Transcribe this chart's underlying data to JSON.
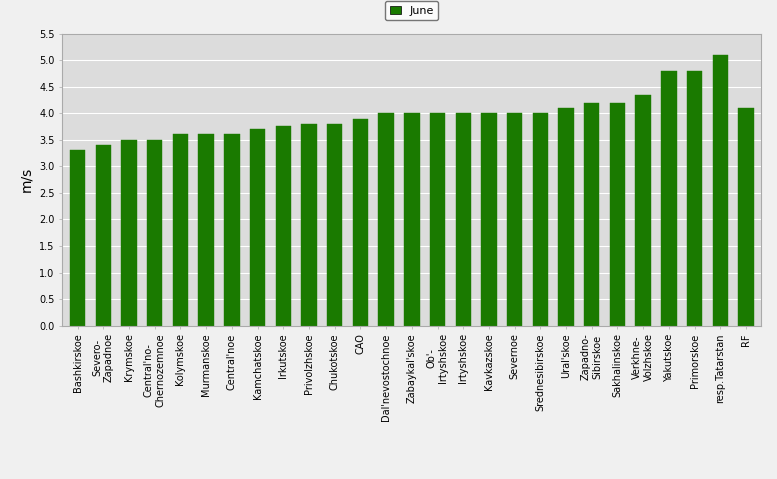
{
  "categories": [
    "Bashkirskoe",
    "Severo-\nZapadnoe",
    "Krymskoe",
    "Central'no-\nChernozemnoe",
    "Kolymskoe",
    "Murmanskoe",
    "Central'noe",
    "Kamchatskoe",
    "Irkutskoe",
    "Privolzhskoe",
    "Chukotskoe",
    "CAO",
    "Dal'nevostochnoe",
    "Zabaykal'skoe",
    "Ob'-\nIrtyshskoe",
    "Irtyshskoe",
    "Kavkazskoe",
    "Severnoe",
    "Srednesibirskoe",
    "Ural'skoe",
    "Zapadno-\nSibirskoe",
    "Sakhalinskoe",
    "Verkhne-\nVolzhskoe",
    "Yakutskoe",
    "Primorskoe",
    "resp.Tatarstan",
    "RF"
  ],
  "values": [
    3.3,
    3.4,
    3.5,
    3.5,
    3.6,
    3.6,
    3.6,
    3.7,
    3.75,
    3.8,
    3.8,
    3.9,
    4.0,
    4.0,
    4.0,
    4.0,
    4.0,
    4.0,
    4.0,
    4.1,
    4.2,
    4.2,
    4.35,
    4.8,
    4.8,
    5.1,
    4.1
  ],
  "bar_color": "#1a7a00",
  "ylabel": "m/s",
  "ylim": [
    0,
    5.5
  ],
  "yticks": [
    0,
    0.5,
    1.0,
    1.5,
    2.0,
    2.5,
    3.0,
    3.5,
    4.0,
    4.5,
    5.0,
    5.5
  ],
  "legend_label": "June",
  "legend_color": "#1a7a00",
  "plot_bg_color": "#dcdcdc",
  "fig_bg_color": "#f0f0f0",
  "bar_edge_color": "#1a7a00",
  "tick_fontsize": 7.0,
  "ylabel_fontsize": 10,
  "grid_color": "#ffffff",
  "spine_color": "#aaaaaa"
}
